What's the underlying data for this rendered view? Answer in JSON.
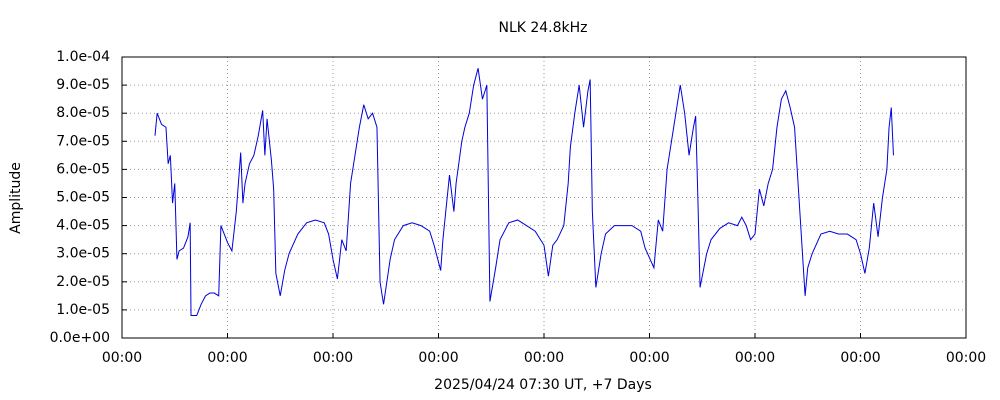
{
  "chart_data": {
    "type": "line",
    "title": "NLK 24.8kHz",
    "x_label": "2025/04/24 07:30 UT, +7 Days",
    "y_label": "Amplitude",
    "xlim": [
      0,
      192
    ],
    "xticks": [
      {
        "value": 0,
        "label": "00:00"
      },
      {
        "value": 24,
        "label": "00:00"
      },
      {
        "value": 48,
        "label": "00:00"
      },
      {
        "value": 72,
        "label": "00:00"
      },
      {
        "value": 96,
        "label": "00:00"
      },
      {
        "value": 120,
        "label": "00:00"
      },
      {
        "value": 144,
        "label": "00:00"
      },
      {
        "value": 168,
        "label": "00:00"
      },
      {
        "value": 192,
        "label": "00:00"
      }
    ],
    "ylim": [
      0,
      0.0001
    ],
    "yticks": [
      {
        "value": 0,
        "label": "0.0e+00"
      },
      {
        "value": 1e-05,
        "label": "1.0e-05"
      },
      {
        "value": 2e-05,
        "label": "2.0e-05"
      },
      {
        "value": 3e-05,
        "label": "3.0e-05"
      },
      {
        "value": 4e-05,
        "label": "4.0e-05"
      },
      {
        "value": 5e-05,
        "label": "5.0e-05"
      },
      {
        "value": 6e-05,
        "label": "6.0e-05"
      },
      {
        "value": 7e-05,
        "label": "7.0e-05"
      },
      {
        "value": 8e-05,
        "label": "8.0e-05"
      },
      {
        "value": 9e-05,
        "label": "9.0e-05"
      },
      {
        "value": 0.0001,
        "label": "1.0e-04"
      }
    ],
    "grid": true,
    "color": "#0000dd",
    "x": [
      7.5,
      8,
      9,
      10,
      10.5,
      11,
      11.5,
      12,
      12.5,
      13,
      14,
      15,
      15.5,
      15.7,
      17,
      18,
      19,
      20,
      21,
      22,
      22.5,
      23,
      24,
      25,
      26,
      27,
      27.5,
      28,
      29,
      30,
      31,
      32,
      32.5,
      33,
      34,
      34.5,
      35,
      36,
      37,
      38,
      40,
      42,
      44,
      46,
      47,
      48,
      49,
      50,
      51,
      52,
      53,
      54,
      55,
      56,
      57,
      58,
      58.7,
      59.5,
      61,
      62,
      64,
      66,
      68,
      70,
      71,
      72.5,
      73,
      74.5,
      75.5,
      76,
      77.3,
      78,
      79,
      80,
      81,
      82,
      83,
      83.7,
      85,
      86,
      88,
      90,
      92,
      94,
      96,
      97,
      98,
      99,
      100.5,
      101.5,
      102,
      103,
      104,
      105,
      106,
      106.5,
      107,
      107.8,
      109,
      110,
      112,
      114,
      116,
      118,
      119,
      121,
      122,
      123,
      124,
      125,
      126,
      127,
      128,
      129,
      130,
      130.5,
      131,
      131.5,
      133,
      134,
      136,
      138,
      140,
      141,
      142,
      143,
      144,
      145,
      146,
      147,
      148,
      149,
      150,
      151,
      152,
      153,
      154,
      155.4,
      156,
      157,
      159,
      161,
      163,
      165,
      167,
      168,
      169,
      170,
      171,
      172,
      173,
      174,
      174.5,
      175,
      175.5
    ],
    "values": [
      7.2e-05,
      8e-05,
      7.6e-05,
      7.5e-05,
      6.2e-05,
      6.5e-05,
      4.8e-05,
      5.5e-05,
      2.8e-05,
      3.1e-05,
      3.2e-05,
      3.6e-05,
      4.1e-05,
      8e-06,
      8e-06,
      1.2e-05,
      1.5e-05,
      1.6e-05,
      1.6e-05,
      1.5e-05,
      4e-05,
      3.8e-05,
      3.4e-05,
      3.1e-05,
      4.5e-05,
      6.6e-05,
      4.8e-05,
      5.5e-05,
      6.2e-05,
      6.5e-05,
      7.2e-05,
      8.1e-05,
      6.5e-05,
      7.8e-05,
      6.3e-05,
      5.3e-05,
      2.3e-05,
      1.5e-05,
      2.4e-05,
      3e-05,
      3.7e-05,
      4.1e-05,
      4.2e-05,
      4.1e-05,
      3.7e-05,
      2.8e-05,
      2.1e-05,
      3.5e-05,
      3.1e-05,
      5.5e-05,
      6.5e-05,
      7.5e-05,
      8.3e-05,
      7.8e-05,
      8e-05,
      7.5e-05,
      2e-05,
      1.2e-05,
      2.8e-05,
      3.5e-05,
      4e-05,
      4.1e-05,
      4e-05,
      3.8e-05,
      3.3e-05,
      2.4e-05,
      3.5e-05,
      5.8e-05,
      4.5e-05,
      5.5e-05,
      7e-05,
      7.5e-05,
      8e-05,
      9e-05,
      9.6e-05,
      8.5e-05,
      9e-05,
      1.3e-05,
      2.5e-05,
      3.5e-05,
      4.1e-05,
      4.2e-05,
      4e-05,
      3.8e-05,
      3.3e-05,
      2.2e-05,
      3.3e-05,
      3.5e-05,
      4e-05,
      5.5e-05,
      6.8e-05,
      8e-05,
      9e-05,
      7.5e-05,
      8.8e-05,
      9.2e-05,
      4.5e-05,
      1.8e-05,
      3e-05,
      3.7e-05,
      4e-05,
      4e-05,
      4e-05,
      3.8e-05,
      3.2e-05,
      2.5e-05,
      4.2e-05,
      3.8e-05,
      6e-05,
      7e-05,
      8e-05,
      9e-05,
      8e-05,
      6.5e-05,
      7.5e-05,
      7.9e-05,
      5e-05,
      1.8e-05,
      3e-05,
      3.5e-05,
      3.9e-05,
      4.1e-05,
      4e-05,
      4.3e-05,
      4e-05,
      3.5e-05,
      3.7e-05,
      5.3e-05,
      4.7e-05,
      5.5e-05,
      6e-05,
      7.5e-05,
      8.5e-05,
      8.8e-05,
      8.2e-05,
      7.5e-05,
      5e-05,
      1.5e-05,
      2.5e-05,
      3e-05,
      3.7e-05,
      3.8e-05,
      3.7e-05,
      3.7e-05,
      3.5e-05,
      3e-05,
      2.3e-05,
      3.2e-05,
      4.8e-05,
      3.6e-05,
      5e-05,
      6e-05,
      7.5e-05,
      8.2e-05,
      6.5e-05
    ]
  }
}
